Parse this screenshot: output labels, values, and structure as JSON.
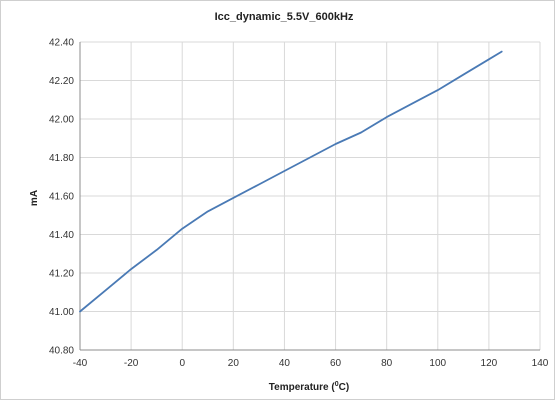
{
  "chart_data": {
    "type": "line",
    "title": "Icc_dynamic_5.5V_600kHz",
    "xlabel_main": "Temperature (",
    "xlabel_sup": "0",
    "xlabel_tail": "C)",
    "ylabel": "mA",
    "xlim": [
      -40,
      140
    ],
    "ylim": [
      40.8,
      42.4
    ],
    "x_ticks": [
      "-40",
      "-20",
      "0",
      "20",
      "40",
      "60",
      "80",
      "100",
      "120",
      "140"
    ],
    "y_ticks": [
      "40.80",
      "41.00",
      "41.20",
      "41.40",
      "41.60",
      "41.80",
      "42.00",
      "42.20",
      "42.40"
    ],
    "grid": true,
    "line_color": "#4a7ab5",
    "series": [
      {
        "x": [
          -40,
          -30,
          -20,
          -10,
          0,
          10,
          20,
          30,
          40,
          50,
          60,
          70,
          80,
          90,
          100,
          110,
          120,
          125
        ],
        "values": [
          41.0,
          41.11,
          41.22,
          41.32,
          41.43,
          41.52,
          41.59,
          41.66,
          41.73,
          41.8,
          41.87,
          41.93,
          42.01,
          42.08,
          42.15,
          42.23,
          42.31,
          42.35
        ]
      }
    ]
  }
}
